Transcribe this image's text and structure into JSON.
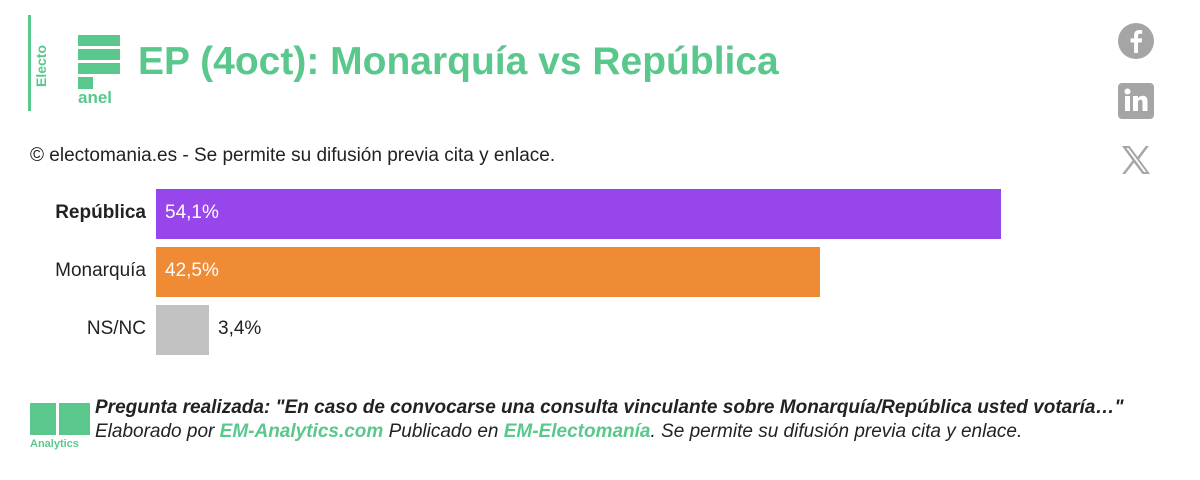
{
  "logo": {
    "top_text": "Electo",
    "bottom_text": "anel"
  },
  "title": "EP (4oct): Monarquía vs República",
  "copyright": "© electomania.es - Se permite su difusión previa cita y enlace.",
  "social": [
    {
      "icon": "facebook-icon"
    },
    {
      "icon": "linkedin-icon"
    },
    {
      "icon": "x-icon"
    }
  ],
  "colors": {
    "accent": "#5ac88c",
    "republica": "#9646ea",
    "monarquia": "#ef8a35",
    "nsnc": "#c2c2c2"
  },
  "chart_data": {
    "type": "bar",
    "orientation": "horizontal",
    "categories": [
      "República",
      "Monarquía",
      "NS/NC"
    ],
    "values": [
      54.1,
      42.5,
      3.4
    ],
    "value_labels": [
      "54,1%",
      "42,5%",
      "3,4%"
    ],
    "colors": [
      "#9646ea",
      "#ef8a35",
      "#c2c2c2"
    ],
    "bold_category": "República",
    "xlim": [
      0,
      100
    ],
    "grid": false
  },
  "footer": {
    "logo_text": "Analytics",
    "question_bold": "Pregunta realizada: \"En caso de convocarse una consulta vinculante sobre Monarquía/República usted votaría…\"",
    "prefix": " Elaborado por ",
    "link1": "EM-Analytics.com",
    "middle": " Publicado en ",
    "link2": "EM-Electomanía",
    "suffix": ". Se permite su difusión previa cita y enlace."
  }
}
